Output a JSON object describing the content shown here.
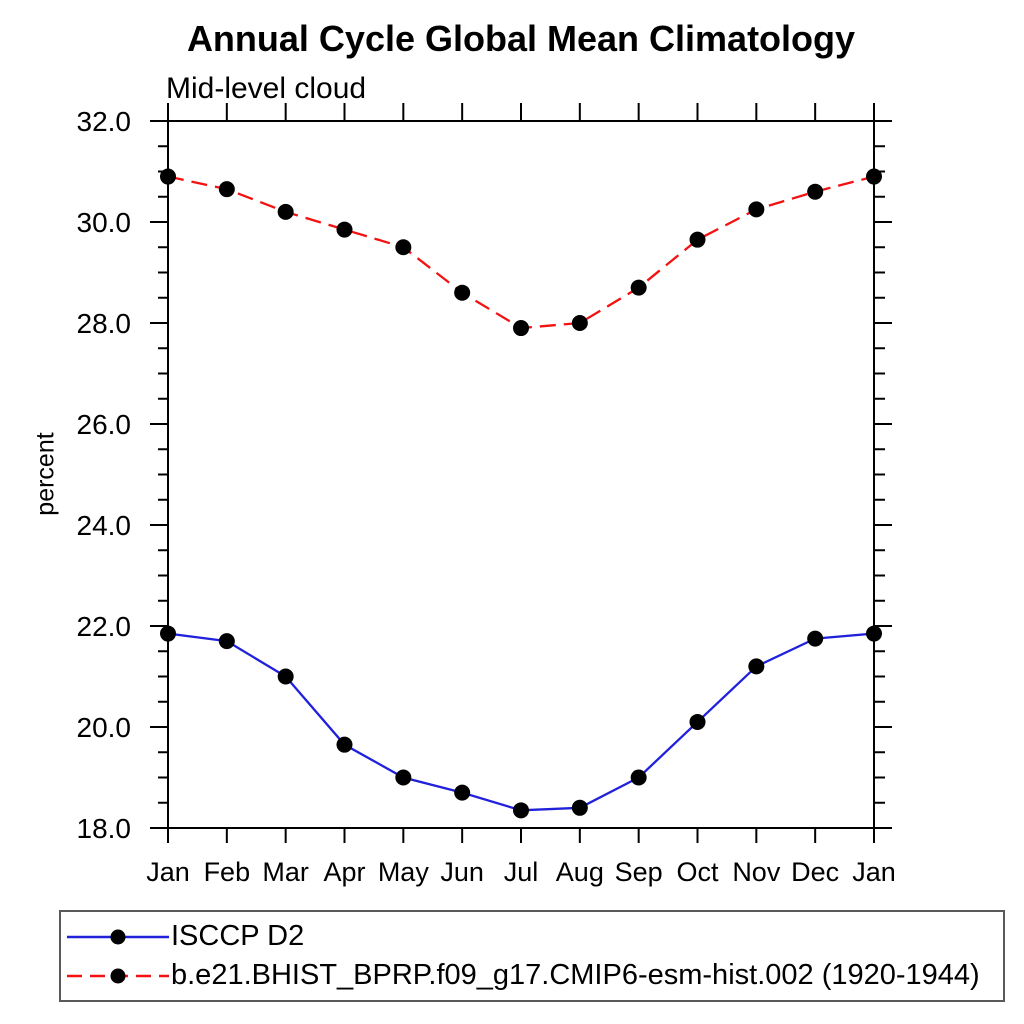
{
  "chart_data": {
    "type": "line",
    "title": "Annual Cycle Global Mean Climatology",
    "subtitle": "Mid-level cloud",
    "xlabel": "",
    "ylabel": "percent",
    "categories": [
      "Jan",
      "Feb",
      "Mar",
      "Apr",
      "May",
      "Jun",
      "Jul",
      "Aug",
      "Sep",
      "Oct",
      "Nov",
      "Dec",
      "Jan"
    ],
    "series": [
      {
        "name": "ISCCP D2",
        "color": "#2121dc",
        "line_style": "solid",
        "marker": "filled-circle",
        "marker_color": "#000000",
        "values": [
          21.85,
          21.7,
          21.0,
          19.65,
          19.0,
          18.7,
          18.35,
          18.4,
          19.0,
          20.1,
          21.2,
          21.75,
          21.85
        ]
      },
      {
        "name": "b.e21.BHIST_BPRP.f09_g17.CMIP6-esm-hist.002 (1920-1944)",
        "color": "#f41111",
        "line_style": "dashed",
        "marker": "filled-circle",
        "marker_color": "#000000",
        "values": [
          30.9,
          30.65,
          30.2,
          29.85,
          29.5,
          28.6,
          27.9,
          28.0,
          28.7,
          29.65,
          30.25,
          30.6,
          30.9
        ]
      }
    ],
    "ylim": [
      18.0,
      32.0
    ],
    "y_major_step": 2.0,
    "y_minor_step": 0.5,
    "y_tick_labels": [
      "18.0",
      "20.0",
      "22.0",
      "24.0",
      "26.0",
      "28.0",
      "30.0",
      "32.0"
    ],
    "grid": false,
    "axis_color": "#000000",
    "legend_position": "bottom-left"
  }
}
